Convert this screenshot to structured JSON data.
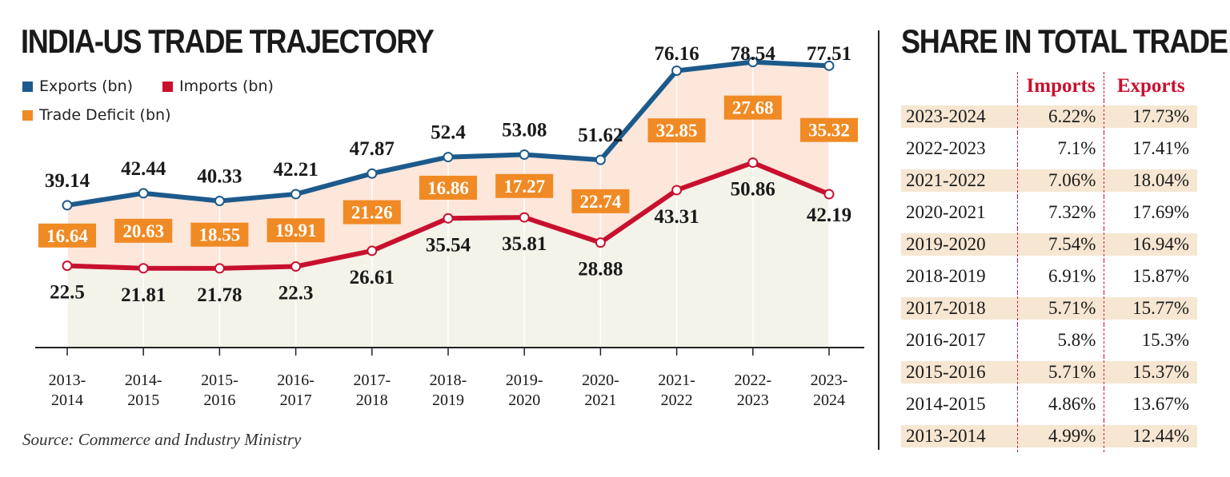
{
  "chart_data": {
    "type": "line",
    "title": "INDIA-US TRADE TRAJECTORY",
    "categories": [
      "2013-2014",
      "2014-2015",
      "2015-2016",
      "2016-2017",
      "2017-2018",
      "2018-2019",
      "2019-2020",
      "2020-2021",
      "2021-2022",
      "2022-2023",
      "2023-2024"
    ],
    "category_lines": [
      [
        "2013-",
        "2014"
      ],
      [
        "2014-",
        "2015"
      ],
      [
        "2015-",
        "2016"
      ],
      [
        "2016-",
        "2017"
      ],
      [
        "2017-",
        "2018"
      ],
      [
        "2018-",
        "2019"
      ],
      [
        "2019-",
        "2020"
      ],
      [
        "2020-",
        "2021"
      ],
      [
        "2021-",
        "2022"
      ],
      [
        "2022-",
        "2023"
      ],
      [
        "2023-",
        "2024"
      ]
    ],
    "series": [
      {
        "name": "Exports (bn)",
        "color": "#1c5a8c",
        "values": [
          39.14,
          42.44,
          40.33,
          42.21,
          47.87,
          52.4,
          53.08,
          51.62,
          76.16,
          78.54,
          77.51
        ],
        "labels": [
          "39.14",
          "42.44",
          "40.33",
          "42.21",
          "47.87",
          "52.4",
          "53.08",
          "51.62",
          "76.16",
          "78.54",
          "77.51"
        ]
      },
      {
        "name": "Imports (bn)",
        "color": "#c8102e",
        "values": [
          22.5,
          21.81,
          21.78,
          22.3,
          26.61,
          35.54,
          35.81,
          28.88,
          43.31,
          50.86,
          42.19
        ],
        "labels": [
          "22.5",
          "21.81",
          "21.78",
          "22.3",
          "26.61",
          "35.54",
          "35.81",
          "28.88",
          "43.31",
          "50.86",
          "42.19"
        ]
      },
      {
        "name": "Trade Deficit  (bn)",
        "color": "#f08a24",
        "values": [
          16.64,
          20.63,
          18.55,
          19.91,
          21.26,
          16.86,
          17.27,
          22.74,
          32.85,
          27.68,
          35.32
        ],
        "labels": [
          "16.64",
          "20.63",
          "18.55",
          "19.91",
          "21.26",
          "16.86",
          "17.27",
          "22.74",
          "32.85",
          "27.68",
          "35.32"
        ]
      }
    ],
    "ylim": [
      0,
      90
    ],
    "xlabel": "",
    "ylabel": "",
    "legend": "top-left",
    "colors": {
      "band_fill": "#fde6da",
      "base_fill": "#f3f3ea",
      "axis": "#222222"
    }
  },
  "legend": {
    "exports": "Exports (bn)",
    "imports": "Imports (bn)",
    "deficit": "Trade Deficit  (bn)"
  },
  "source": "Source: Commerce and Industry Ministry",
  "share_table": {
    "title": "SHARE IN TOTAL TRADE",
    "headers": {
      "imports": "Imports",
      "exports": "Exports"
    },
    "rows": [
      {
        "year": "2023-2024",
        "imports": "6.22%",
        "exports": "17.73%"
      },
      {
        "year": "2022-2023",
        "imports": "7.1%",
        "exports": "17.41%"
      },
      {
        "year": "2021-2022",
        "imports": "7.06%",
        "exports": "18.04%"
      },
      {
        "year": "2020-2021",
        "imports": "7.32%",
        "exports": "17.69%"
      },
      {
        "year": "2019-2020",
        "imports": "7.54%",
        "exports": "16.94%"
      },
      {
        "year": "2018-2019",
        "imports": "6.91%",
        "exports": "15.87%"
      },
      {
        "year": "2017-2018",
        "imports": "5.71%",
        "exports": "15.77%"
      },
      {
        "year": "2016-2017",
        "imports": "5.8%",
        "exports": "15.3%"
      },
      {
        "year": "2015-2016",
        "imports": "5.71%",
        "exports": "15.37%"
      },
      {
        "year": "2014-2015",
        "imports": "4.86%",
        "exports": "13.67%"
      },
      {
        "year": "2013-2014",
        "imports": "4.99%",
        "exports": "12.44%"
      }
    ]
  }
}
